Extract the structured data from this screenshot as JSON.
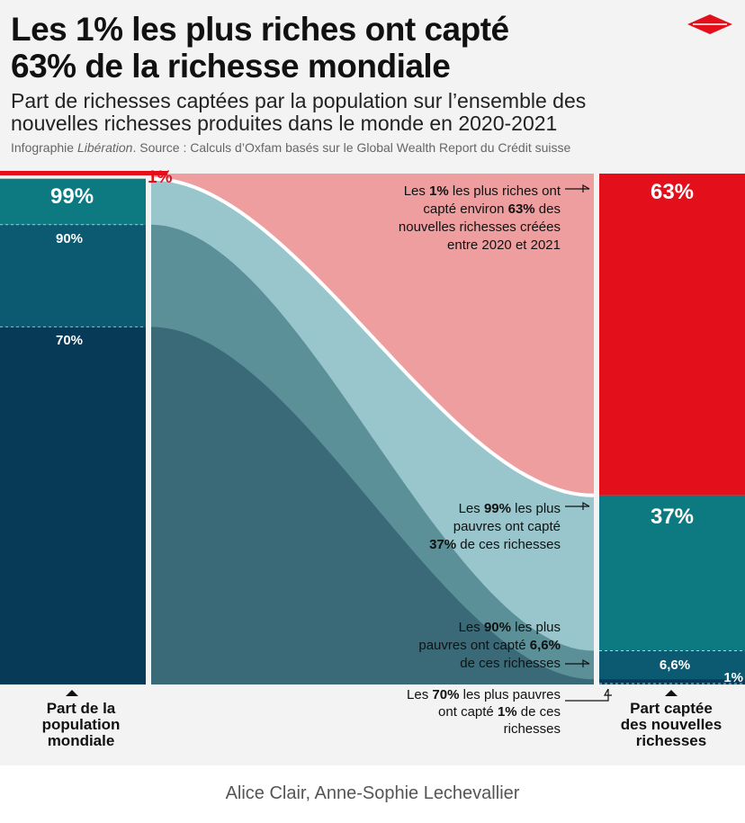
{
  "header": {
    "title_line1": "Les 1% les plus riches ont capté",
    "title_line2": "63% de la richesse mondiale",
    "subtitle_line1": "Part de richesses captées par la population sur l’ensemble des",
    "subtitle_line2": "nouvelles richesses produites dans le monde en 2020-2021",
    "source_prefix": "Infographie ",
    "source_brand": "Libération",
    "source_rest": ". Source : Calculs d’Oxfam basés sur le Global Wealth Report du Crédit suisse"
  },
  "colors": {
    "red": "#e3101c",
    "pink": "#ef9ea0",
    "teal": "#0c7a80",
    "light_teal": "#98c6cc",
    "mid_teal": "#5b9099",
    "dark_teal_flow": "#3a6a78",
    "navy": "#073a57",
    "navy_mid": "#0b5a72",
    "background": "#f3f3f3"
  },
  "chart_data": {
    "type": "flow",
    "left_axis": {
      "label_lines": [
        "Part de la",
        "population",
        "mondiale"
      ],
      "ticks": [
        "1%",
        "99%",
        "90%",
        "70%"
      ]
    },
    "right_axis": {
      "label_lines": [
        "Part captée",
        "des nouvelles",
        "richesses"
      ],
      "labels": [
        "63%",
        "37%",
        "6,6%",
        "1%"
      ]
    },
    "groups": [
      {
        "name": "Les 1% les plus riches",
        "population_share": 1,
        "wealth_share": 63
      },
      {
        "name": "Les 99% les plus pauvres",
        "population_share": 99,
        "wealth_share": 37
      },
      {
        "name": "Les 90% les plus pauvres",
        "population_share": 90,
        "wealth_share": 6.6
      },
      {
        "name": "Les 70% les plus pauvres",
        "population_share": 70,
        "wealth_share": 1
      }
    ],
    "annotations": [
      {
        "lines": [
          [
            {
              "t": "Les "
            },
            {
              "t": "1%",
              "b": true
            },
            {
              "t": " les plus riches ont"
            }
          ],
          [
            {
              "t": "capté environ "
            },
            {
              "t": "63%",
              "b": true
            },
            {
              "t": " des"
            }
          ],
          [
            {
              "t": "nouvelles richesses créées"
            }
          ],
          [
            {
              "t": "entre 2020 et 2021"
            }
          ]
        ]
      },
      {
        "lines": [
          [
            {
              "t": "Les "
            },
            {
              "t": "99%",
              "b": true
            },
            {
              "t": " les plus"
            }
          ],
          [
            {
              "t": "pauvres ont capté"
            }
          ],
          [
            {
              "t": "37%",
              "b": true
            },
            {
              "t": " de ces richesses"
            }
          ]
        ]
      },
      {
        "lines": [
          [
            {
              "t": "Les "
            },
            {
              "t": "90%",
              "b": true
            },
            {
              "t": " les plus"
            }
          ],
          [
            {
              "t": "pauvres ont capté "
            },
            {
              "t": "6,6%",
              "b": true
            }
          ],
          [
            {
              "t": "de ces richesses"
            }
          ]
        ]
      },
      {
        "lines": [
          [
            {
              "t": "Les "
            },
            {
              "t": "70%",
              "b": true
            },
            {
              "t": " les plus pauvres"
            }
          ],
          [
            {
              "t": "ont capté "
            },
            {
              "t": "1%",
              "b": true
            },
            {
              "t": " de ces"
            }
          ],
          [
            {
              "t": "richesses"
            }
          ]
        ]
      }
    ]
  },
  "footer": {
    "credit": "Alice Clair, Anne-Sophie Lechevallier"
  }
}
